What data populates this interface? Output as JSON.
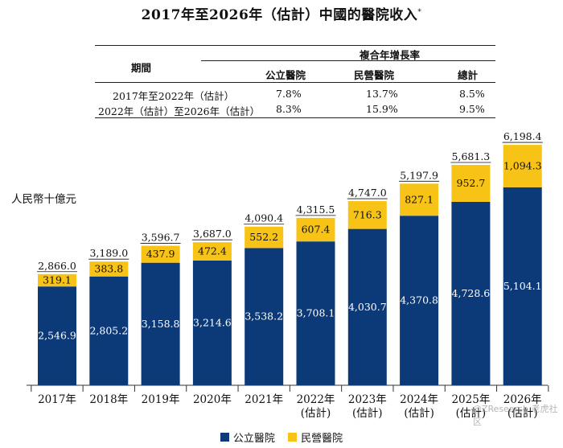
{
  "title": "2017年至2026年（估計）中國的醫院收入",
  "title_mark": "*",
  "cagr_table": {
    "period_header": "期間",
    "group_header": "複合年增長率",
    "col_headers": [
      "公立醫院",
      "民營醫院",
      "總計"
    ],
    "rows": [
      {
        "period": "2017年至2022年（估計）",
        "values": [
          "7.8%",
          "13.7%",
          "8.5%"
        ]
      },
      {
        "period": "2022年（估計）至2026年（估計）",
        "values": [
          "8.3%",
          "15.9%",
          "9.5%"
        ]
      }
    ]
  },
  "unit_label": "人民幣十億元",
  "watermark": "@ZResearch  老虎社区",
  "colors": {
    "public": "#0c3a78",
    "private": "#f7c317",
    "axis": "#333333"
  },
  "chart_data": {
    "type": "bar",
    "stacked": true,
    "categories": [
      [
        "2017年"
      ],
      [
        "2018年"
      ],
      [
        "2019年"
      ],
      [
        "2020年"
      ],
      [
        "2021年"
      ],
      [
        "2022年",
        "(估計)"
      ],
      [
        "2023年",
        "(估計)"
      ],
      [
        "2024年",
        "(估計)"
      ],
      [
        "2025年",
        "(估計)"
      ],
      [
        "2026年",
        "(估計)"
      ]
    ],
    "series": [
      {
        "name": "公立醫院",
        "values": [
          2546.9,
          2805.2,
          3158.8,
          3214.6,
          3538.2,
          3708.1,
          4030.7,
          4370.8,
          4728.6,
          5104.1
        ],
        "labels": [
          "2,546.9",
          "2,805.2",
          "3,158.8",
          "3,214.6",
          "3,538.2",
          "3,708.1",
          "4,030.7",
          "4,370.8",
          "4,728.6",
          "5,104.1"
        ]
      },
      {
        "name": "民營醫院",
        "values": [
          319.1,
          383.8,
          437.9,
          472.4,
          552.2,
          607.4,
          716.3,
          827.1,
          952.7,
          1094.3
        ],
        "labels": [
          "319.1",
          "383.8",
          "437.9",
          "472.4",
          "552.2",
          "607.4",
          "716.3",
          "827.1",
          "952.7",
          "1,094.3"
        ]
      }
    ],
    "totals": [
      2866.0,
      3189.0,
      3596.7,
      3687.0,
      4090.4,
      4315.5,
      4747.0,
      5197.9,
      5681.3,
      6198.4
    ],
    "total_labels": [
      "2,866.0",
      "3,189.0",
      "3,596.7",
      "3,687.0",
      "4,090.4",
      "4,315.5",
      "4,747.0",
      "5,197.9",
      "5,681.3",
      "6,198.4"
    ],
    "ylabel": "人民幣十億元",
    "ylim": [
      0,
      6200
    ],
    "grid": false,
    "legend": "bottom"
  }
}
